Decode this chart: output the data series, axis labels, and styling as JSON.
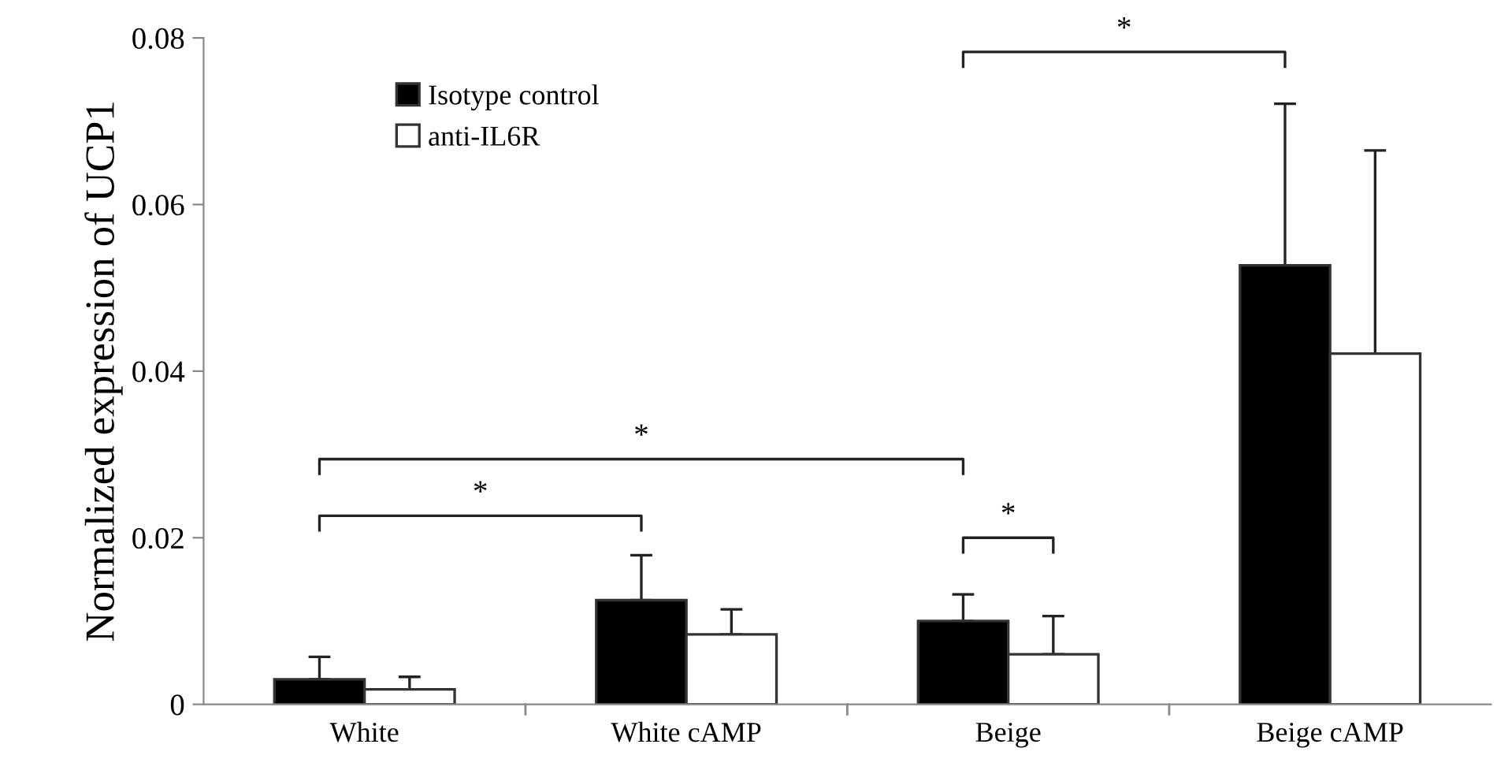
{
  "chart_data": {
    "type": "bar",
    "ylabel": "Normalized expression of UCP1",
    "categories": [
      "White",
      "White cAMP",
      "Beige",
      "Beige cAMP"
    ],
    "series": [
      {
        "name": "Isotype control",
        "color": "#000000",
        "values": [
          0.003,
          0.0125,
          0.01,
          0.0527
        ],
        "errors": [
          [
            0.003,
            0.0057
          ],
          [
            0.0125,
            0.0179
          ],
          [
            0.01,
            0.0132
          ],
          [
            0.0527,
            0.0721
          ]
        ]
      },
      {
        "name": "anti-IL6R",
        "color": "#ffffff",
        "values": [
          0.0018,
          0.0084,
          0.006,
          0.0421
        ],
        "errors": [
          [
            0.0018,
            0.0033
          ],
          [
            0.0084,
            0.0114
          ],
          [
            0.006,
            0.0106
          ],
          [
            0.0421,
            0.0665
          ]
        ]
      }
    ],
    "ylim": [
      0,
      0.08
    ],
    "yticks": [
      {
        "value": 0,
        "label": "0"
      },
      0.02,
      0.04,
      0.06,
      0.08
    ],
    "grid": false,
    "legend": "top left",
    "annotations": [
      "*",
      "*",
      "*",
      "*"
    ]
  }
}
